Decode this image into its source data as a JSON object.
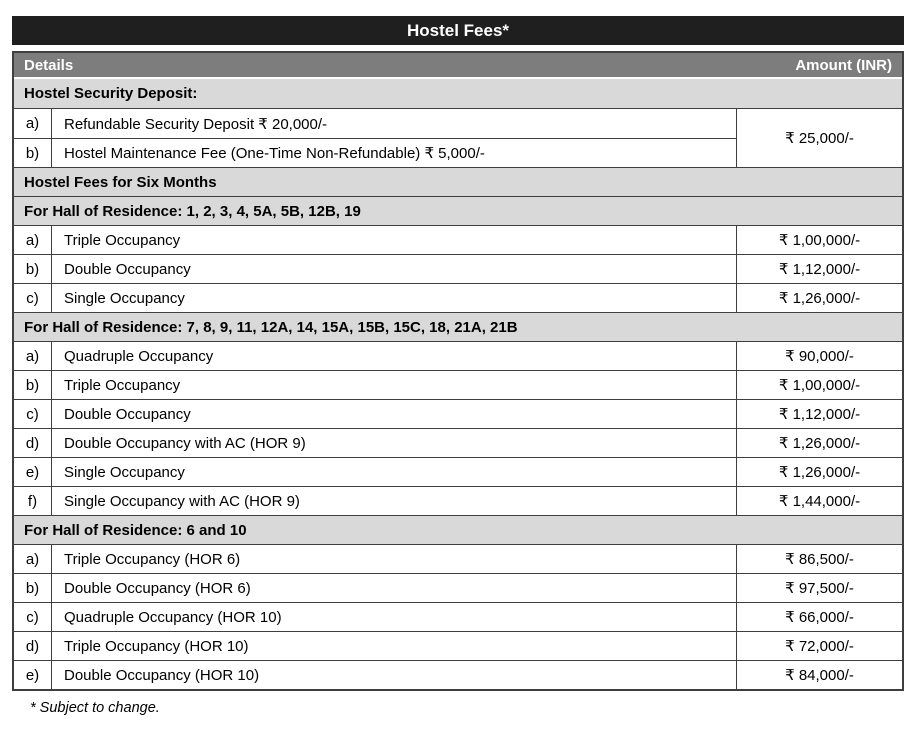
{
  "title": "Hostel Fees*",
  "columns": {
    "details": "Details",
    "amount": "Amount (INR)"
  },
  "deposit_section": {
    "heading": "Hostel Security Deposit:",
    "rows": [
      {
        "label": "a)",
        "text": "Refundable Security Deposit ₹ 20,000/-"
      },
      {
        "label": "b)",
        "text": "Hostel Maintenance Fee (One-Time Non-Refundable) ₹ 5,000/-"
      }
    ],
    "merged_amount": "₹ 25,000/-"
  },
  "fees_heading": "Hostel Fees for Six Months",
  "sections": [
    {
      "heading": "For Hall of Residence: 1, 2, 3, 4, 5A, 5B, 12B, 19",
      "rows": [
        {
          "label": "a)",
          "text": "Triple Occupancy",
          "amount": "₹ 1,00,000/-"
        },
        {
          "label": "b)",
          "text": "Double Occupancy",
          "amount": "₹ 1,12,000/-"
        },
        {
          "label": "c)",
          "text": "Single Occupancy",
          "amount": "₹ 1,26,000/-"
        }
      ]
    },
    {
      "heading": "For Hall of Residence: 7, 8, 9, 11, 12A, 14, 15A, 15B, 15C, 18, 21A, 21B",
      "rows": [
        {
          "label": "a)",
          "text": "Quadruple Occupancy",
          "amount": "₹ 90,000/-"
        },
        {
          "label": "b)",
          "text": "Triple Occupancy",
          "amount": "₹ 1,00,000/-"
        },
        {
          "label": "c)",
          "text": "Double Occupancy",
          "amount": "₹ 1,12,000/-"
        },
        {
          "label": "d)",
          "text": "Double Occupancy with AC (HOR 9)",
          "amount": "₹ 1,26,000/-"
        },
        {
          "label": "e)",
          "text": "Single Occupancy",
          "amount": "₹ 1,26,000/-"
        },
        {
          "label": "f)",
          "text": "Single Occupancy with AC (HOR 9)",
          "amount": "₹ 1,44,000/-"
        }
      ]
    },
    {
      "heading": "For Hall of Residence: 6 and 10",
      "rows": [
        {
          "label": "a)",
          "text": "Triple Occupancy (HOR 6)",
          "amount": "₹ 86,500/-"
        },
        {
          "label": "b)",
          "text": "Double Occupancy (HOR 6)",
          "amount": "₹ 97,500/-"
        },
        {
          "label": "c)",
          "text": "Quadruple Occupancy (HOR 10)",
          "amount": "₹ 66,000/-"
        },
        {
          "label": "d)",
          "text": "Triple Occupancy (HOR 10)",
          "amount": "₹ 72,000/-"
        },
        {
          "label": "e)",
          "text": "Double Occupancy (HOR 10)",
          "amount": "₹ 84,000/-"
        }
      ]
    }
  ],
  "footnote": "* Subject to change.",
  "colors": {
    "title-bg": "#1f1f1f",
    "header-bg": "#7d7d7d",
    "section-bg": "#d9d9d9",
    "border": "#3f3f3f",
    "text": "#000000",
    "inverse-text": "#ffffff"
  }
}
